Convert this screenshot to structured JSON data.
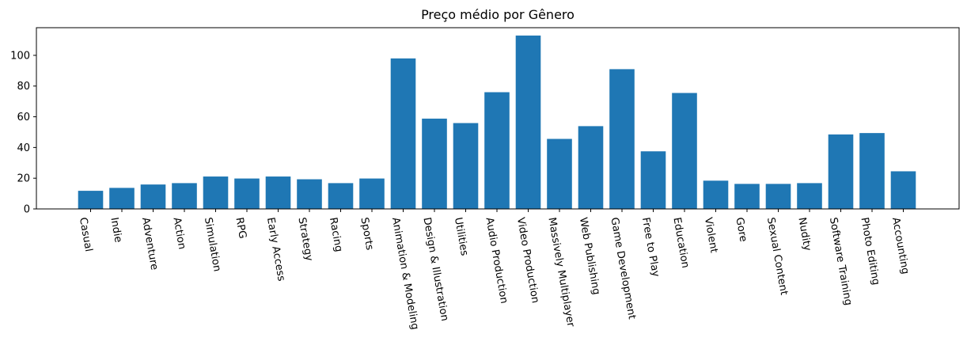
{
  "chart_data": {
    "type": "bar",
    "title": "Preço médio por Gênero",
    "xlabel": "",
    "ylabel": "",
    "ylim": [
      0,
      118
    ],
    "yticks": [
      "0",
      "20",
      "40",
      "60",
      "80",
      "100"
    ],
    "grid": false,
    "bar_color": "#1f77b4",
    "categories": [
      "Casual",
      "Indie",
      "Adventure",
      "Action",
      "Simulation",
      "RPG",
      "Early Access",
      "Strategy",
      "Racing",
      "Sports",
      "Animation & Modeling",
      "Design & Illustration",
      "Utilities",
      "Audio Production",
      "Video Production",
      "Massively Multiplayer",
      "Web Publishing",
      "Game Development",
      "Free to Play",
      "Education",
      "Violent",
      "Gore",
      "Sexual Content",
      "Nudity",
      "Software Training",
      "Photo Editing",
      "Accounting"
    ],
    "values": [
      11.8,
      13.7,
      15.9,
      16.8,
      21.1,
      19.8,
      21.1,
      19.3,
      16.8,
      19.8,
      98.0,
      58.8,
      55.9,
      76.0,
      112.9,
      45.6,
      53.9,
      91.0,
      37.5,
      75.5,
      18.4,
      16.3,
      16.3,
      16.8,
      48.5,
      49.4,
      24.5
    ]
  }
}
